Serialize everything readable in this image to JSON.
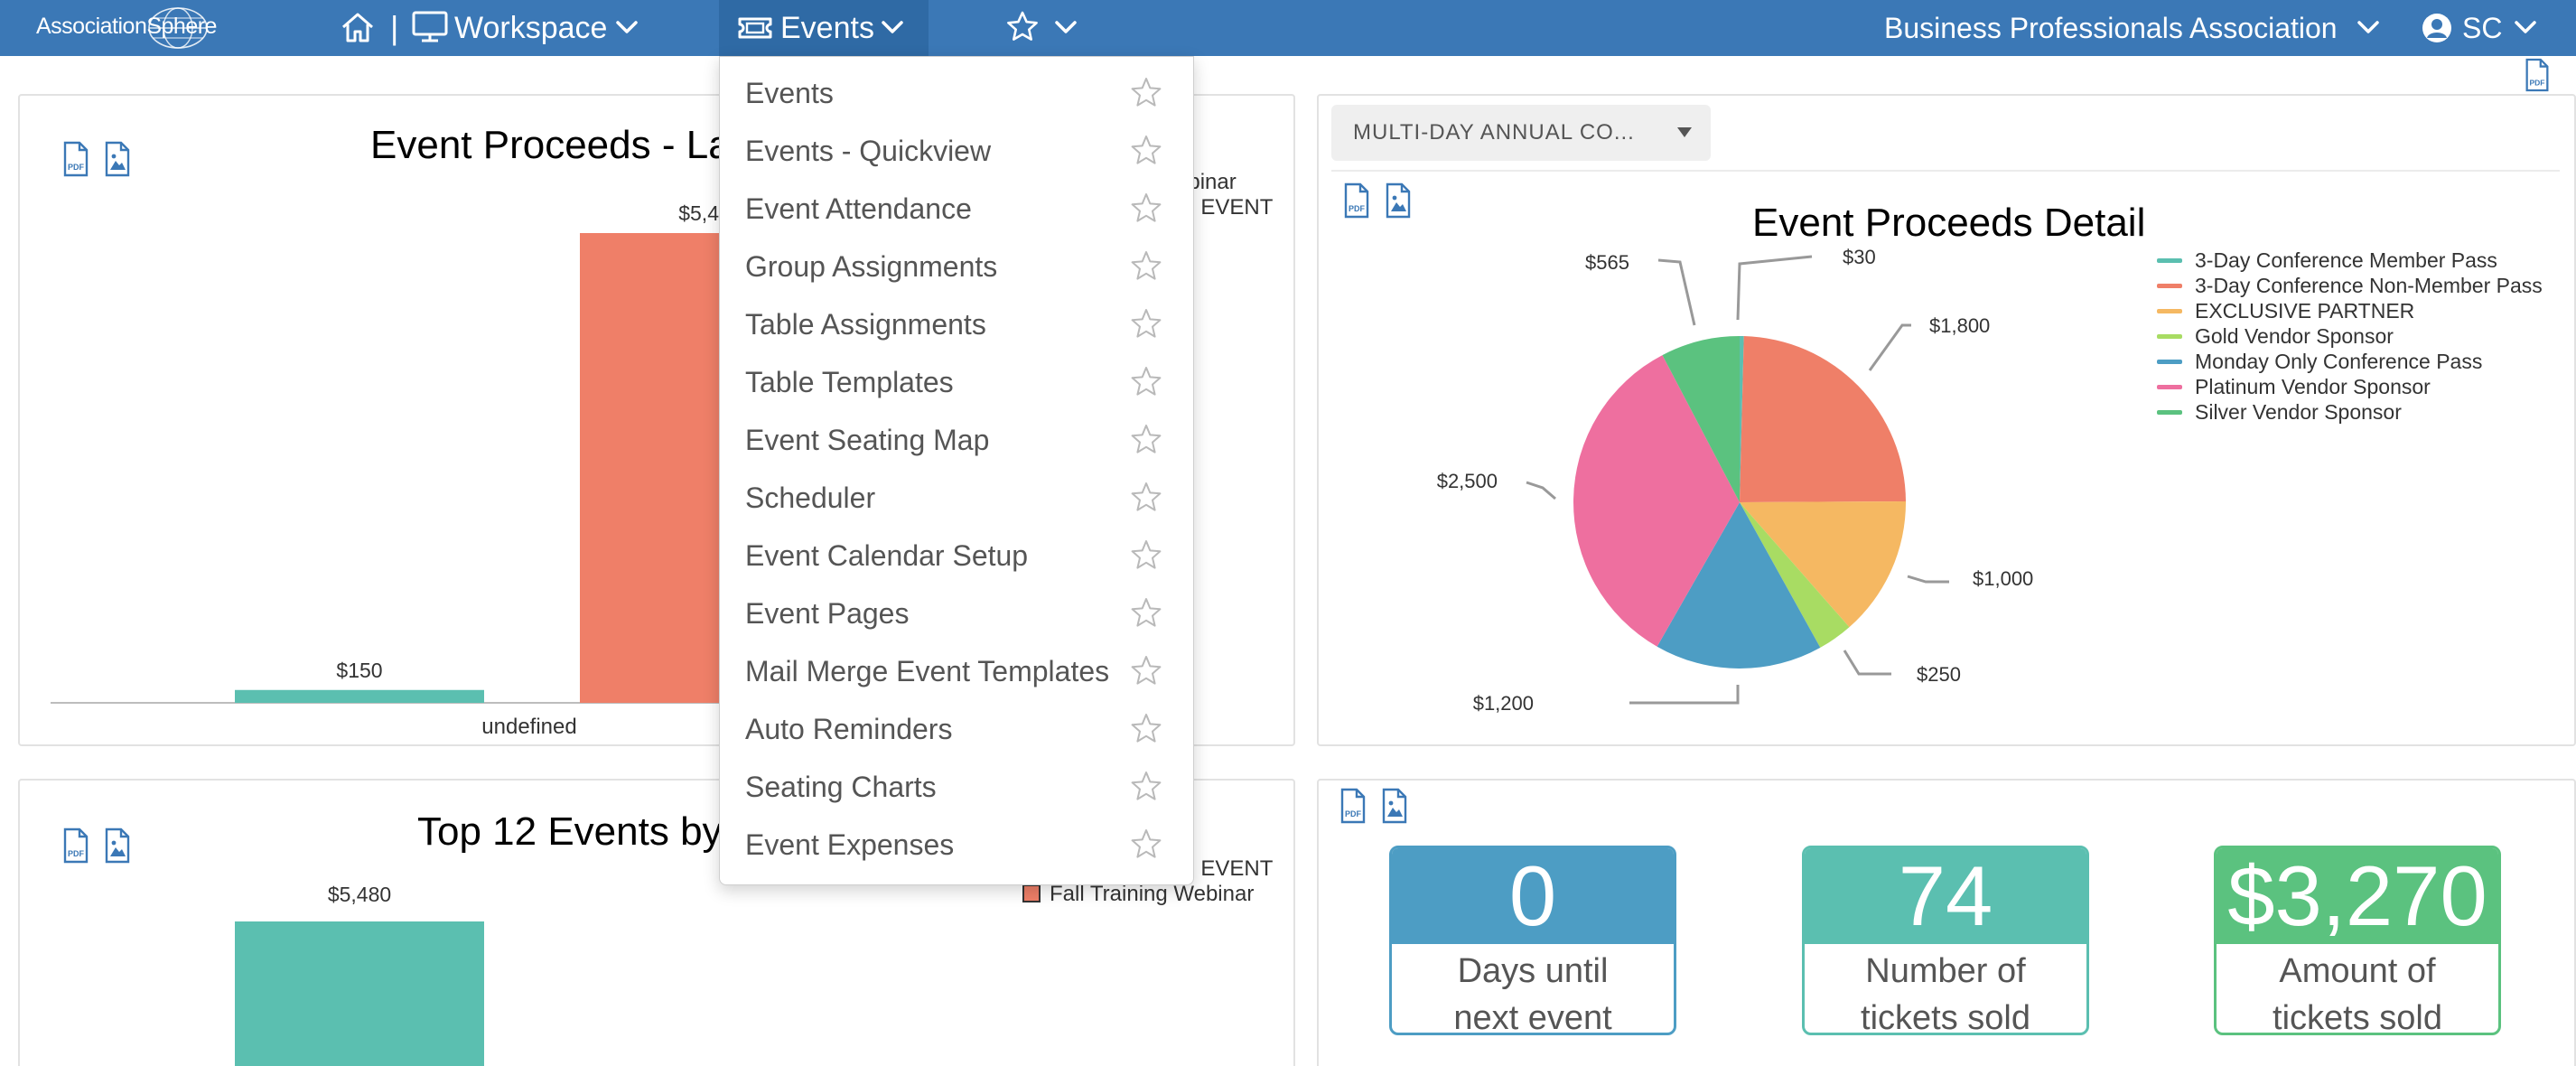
{
  "header": {
    "logo": "AssociationSphere",
    "workspace_label": "Workspace",
    "events_label": "Events",
    "org_name": "Business Professionals Association",
    "user_initials": "SC"
  },
  "events_menu": {
    "items": [
      "Events",
      "Events - Quickview",
      "Event Attendance",
      "Group Assignments",
      "Table Assignments",
      "Table Templates",
      "Event Seating Map",
      "Scheduler",
      "Event Calendar Setup",
      "Event Pages",
      "Mail Merge Event Templates",
      "Auto Reminders",
      "Seating Charts",
      "Event Expenses"
    ]
  },
  "panel_proceeds": {
    "title_visible": "Event Proceeds - La",
    "legend_fragment_1": "ebinar",
    "legend_fragment_2": "G EVENT",
    "chart_data": {
      "type": "bar",
      "categories": [
        "undefined"
      ],
      "series": [
        {
          "values": [
            150
          ],
          "color": "#5bbfb0"
        },
        {
          "values": [
            5480
          ],
          "color": "#ef7f68"
        }
      ],
      "data_labels": [
        "$150",
        "$5,48"
      ],
      "x_tick": "undefined"
    }
  },
  "panel_detail": {
    "select_value": "MULTI-DAY ANNUAL CO...",
    "chart_data": {
      "type": "pie",
      "title": "Event Proceeds Detail",
      "slices": [
        {
          "label": "3-Day Conference Member Pass",
          "value": 30,
          "display": "$30",
          "color": "#5bbfb0"
        },
        {
          "label": "3-Day Conference Non-Member Pass",
          "value": 1800,
          "display": "$1,800",
          "color": "#ef7f68"
        },
        {
          "label": "EXCLUSIVE PARTNER",
          "value": 1000,
          "display": "$1,000",
          "color": "#f5b862"
        },
        {
          "label": "Gold Vendor Sponsor",
          "value": 250,
          "display": "$250",
          "color": "#a8dc63"
        },
        {
          "label": "Monday Only Conference Pass",
          "value": 1200,
          "display": "$1,200",
          "color": "#4d9dc4"
        },
        {
          "label": "Platinum Vendor Sponsor",
          "value": 2500,
          "display": "$2,500",
          "color": "#ee6f9f"
        },
        {
          "label": "Silver Vendor Sponsor",
          "value": 565,
          "display": "$565",
          "color": "#5bc27f"
        }
      ],
      "legend_position": "right"
    }
  },
  "panel_top12": {
    "title_visible": "Top 12 Events by",
    "legend_fragment": "G EVENT",
    "legend_item": "Fall Training Webinar",
    "legend_item_color": "#ef7f68",
    "chart_data": {
      "type": "bar",
      "series": [
        {
          "values": [
            5480
          ],
          "color": "#5bbfb0"
        }
      ],
      "data_labels": [
        "$5,480"
      ]
    }
  },
  "kpis": [
    {
      "value": "0",
      "label_line1": "Days until",
      "label_line2": "next event",
      "color": "#4d9dc4"
    },
    {
      "value": "74",
      "label_line1": "Number of",
      "label_line2": "tickets sold",
      "color": "#5bbfb0"
    },
    {
      "value": "$3,270",
      "label_line1": "Amount of",
      "label_line2": "tickets sold",
      "color": "#5bc27f"
    }
  ]
}
